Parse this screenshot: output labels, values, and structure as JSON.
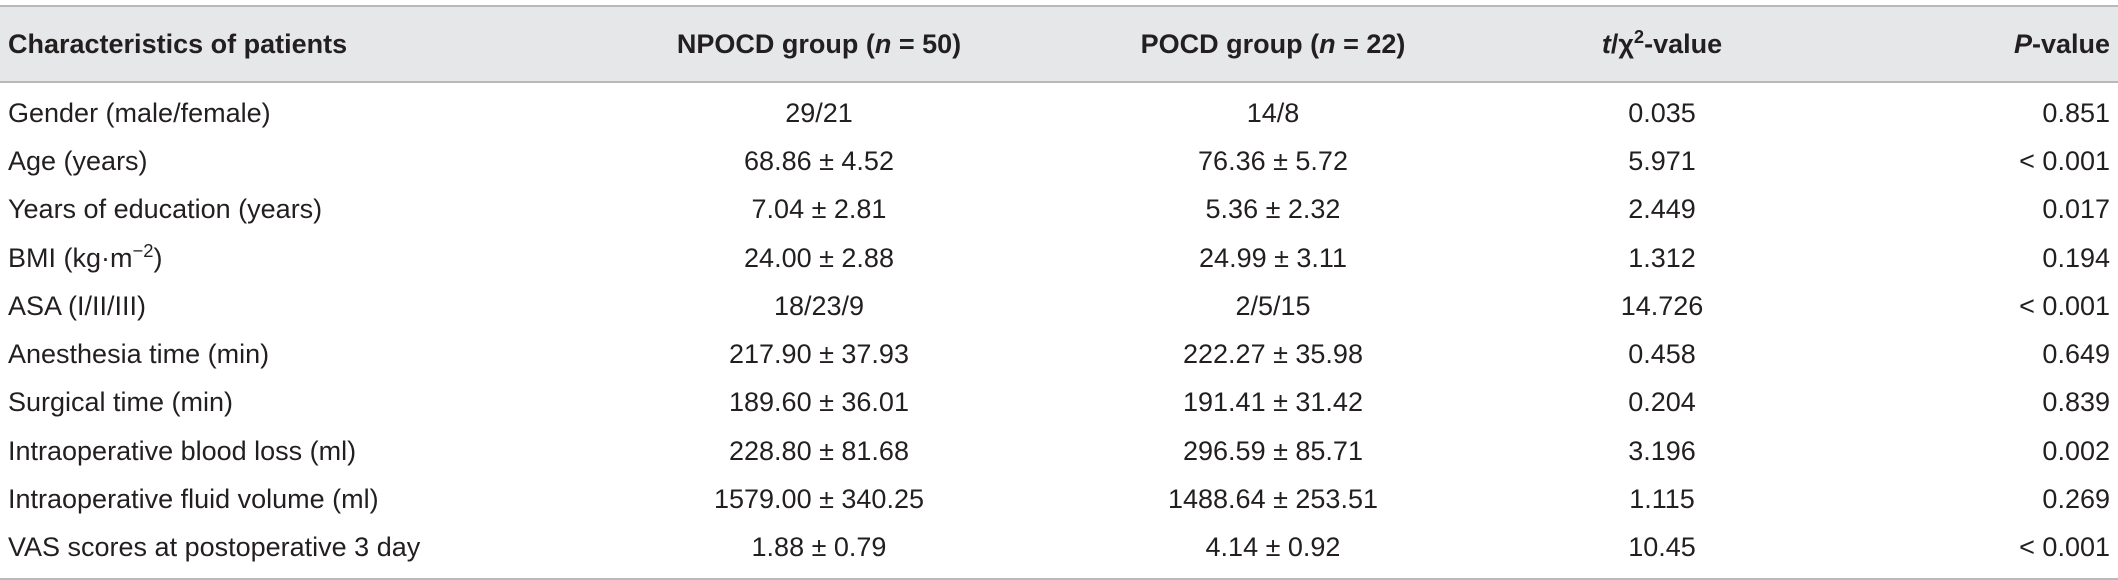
{
  "header": {
    "col0": "Characteristics of patients",
    "col1_pre": "NPOCD group (",
    "col1_n": "n",
    "col1_post": " = 50)",
    "col2_pre": "POCD group (",
    "col2_n": "n",
    "col2_post": " = 22)",
    "col3_t": "t",
    "col3_mid": "/χ",
    "col3_sup": "2",
    "col3_post": "-value",
    "col4_p": "P",
    "col4_post": "-value"
  },
  "rows": [
    {
      "label": "Gender (male/female)",
      "npocd": "29/21",
      "pocd": "14/8",
      "stat": "0.035",
      "p": "0.851"
    },
    {
      "label": "Age (years)",
      "npocd": "68.86 ± 4.52",
      "pocd": "76.36 ± 5.72",
      "stat": "5.971",
      "p": "< 0.001"
    },
    {
      "label": "Years of education (years)",
      "npocd": "7.04 ± 2.81",
      "pocd": "5.36 ± 2.32",
      "stat": "2.449",
      "p": "0.017"
    },
    {
      "label_pre": "BMI (kg·m",
      "label_sup": "−2",
      "label_post": ")",
      "npocd": "24.00 ± 2.88",
      "pocd": "24.99 ± 3.11",
      "stat": "1.312",
      "p": "0.194"
    },
    {
      "label": "ASA (I/II/III)",
      "npocd": "18/23/9",
      "pocd": "2/5/15",
      "stat": "14.726",
      "p": "< 0.001"
    },
    {
      "label": "Anesthesia time (min)",
      "npocd": "217.90 ± 37.93",
      "pocd": "222.27 ± 35.98",
      "stat": "0.458",
      "p": "0.649"
    },
    {
      "label": "Surgical time (min)",
      "npocd": "189.60 ± 36.01",
      "pocd": "191.41 ± 31.42",
      "stat": "0.204",
      "p": "0.839"
    },
    {
      "label": "Intraoperative blood loss (ml)",
      "npocd": "228.80 ± 81.68",
      "pocd": "296.59 ± 85.71",
      "stat": "3.196",
      "p": "0.002"
    },
    {
      "label": "Intraoperative fluid volume (ml)",
      "npocd": "1579.00 ± 340.25",
      "pocd": "1488.64 ± 253.51",
      "stat": "1.115",
      "p": "0.269"
    },
    {
      "label": "VAS scores at postoperative 3 day",
      "npocd": "1.88 ± 0.79",
      "pocd": "4.14 ± 0.92",
      "stat": "10.45",
      "p": "< 0.001"
    }
  ]
}
